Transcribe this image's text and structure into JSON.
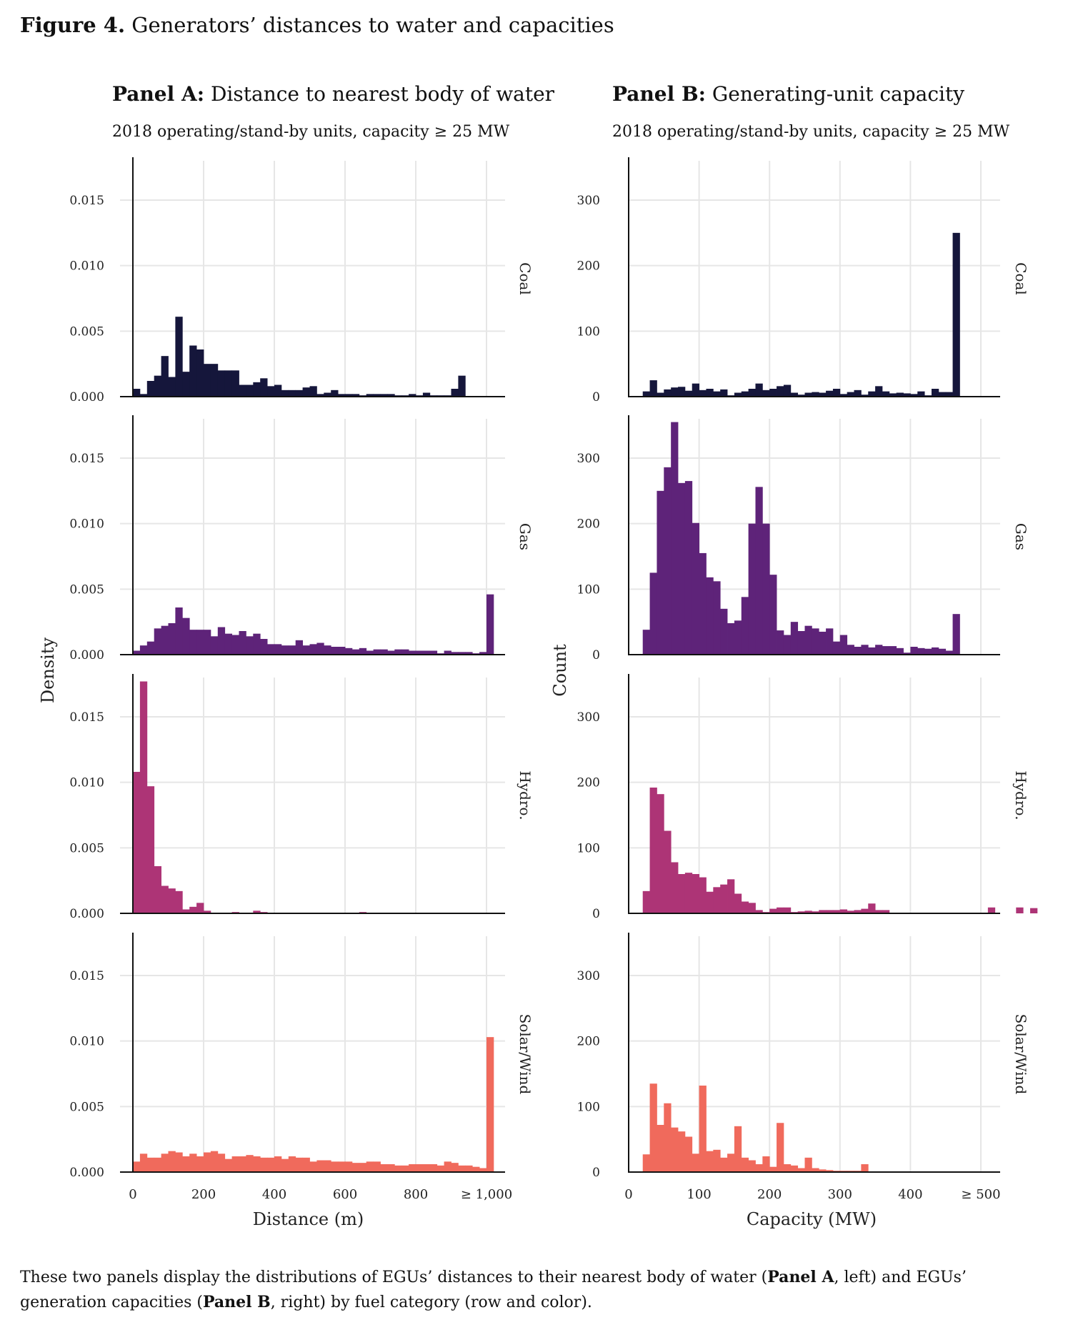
{
  "figure": {
    "label": "Figure 4.",
    "title": "Generators’ distances to water and capacities"
  },
  "panels": [
    {
      "prefix": "Panel A:",
      "title": "Distance to nearest body of water",
      "subtitle": "2018 operating/stand-by units, capacity  ≥ 25 MW"
    },
    {
      "prefix": "Panel B:",
      "title": "Generating-unit capacity",
      "subtitle": "2018 operating/stand-by units, capacity  ≥ 25 MW"
    }
  ],
  "caption": {
    "t1": "These two panels display the distributions of EGUs’ distances to their nearest body of water (",
    "b1": "Panel A",
    "t2": ", left) and EGUs’ generation capacities (",
    "b2": "Panel B",
    "t3": ", right) by fuel category (row and color)."
  },
  "colors": {
    "Coal": "#15163b",
    "Gas": "#5e2379",
    "Hydro.": "#ad3476",
    "Solar/Wind": "#f06a5c",
    "grid": "#e6e6e6"
  },
  "chart_data": [
    {
      "type": "bar",
      "panel": "A",
      "xlabel": "Distance (m)",
      "ylabel": "Density",
      "xlim": [
        0,
        1000
      ],
      "ylim": [
        0,
        0.018
      ],
      "bin_width": 20,
      "x_ticks": [
        0,
        200,
        400,
        600,
        800,
        1000
      ],
      "x_tick_labels": [
        "0",
        "200",
        "400",
        "600",
        "800",
        "≥ 1,000"
      ],
      "y_ticks": [
        0,
        0.005,
        0.01,
        0.015
      ],
      "y_tick_labels": [
        "0.000",
        "0.005",
        "0.010",
        "0.015"
      ],
      "series": [
        {
          "name": "Coal",
          "values": [
            0.0006,
            0.0002,
            0.0012,
            0.0016,
            0.0031,
            0.0015,
            0.0061,
            0.0019,
            0.0039,
            0.0036,
            0.0025,
            0.0025,
            0.002,
            0.002,
            0.002,
            0.0009,
            0.0009,
            0.0011,
            0.0014,
            0.0008,
            0.0009,
            0.0005,
            0.0005,
            0.0005,
            0.0007,
            0.0008,
            0.0002,
            0.0003,
            0.0005,
            0.0002,
            0.0002,
            0.0002,
            0.0001,
            0.0002,
            0.0002,
            0.0002,
            0.0002,
            0.0001,
            0.0001,
            0.0002,
            0.0001,
            0.0003,
            0.0001,
            0.0001,
            0.0001,
            0.0006,
            0.0016
          ]
        },
        {
          "name": "Gas",
          "values": [
            0.0003,
            0.0007,
            0.001,
            0.002,
            0.0022,
            0.0024,
            0.0036,
            0.0028,
            0.0019,
            0.0019,
            0.0019,
            0.0014,
            0.0021,
            0.0016,
            0.0015,
            0.0018,
            0.0014,
            0.0016,
            0.0012,
            0.0008,
            0.0008,
            0.0007,
            0.0007,
            0.0011,
            0.0007,
            0.0008,
            0.0009,
            0.0007,
            0.0006,
            0.0006,
            0.0005,
            0.0004,
            0.0005,
            0.0003,
            0.0004,
            0.0004,
            0.0003,
            0.0004,
            0.0004,
            0.0003,
            0.0003,
            0.0003,
            0.0003,
            0.0001,
            0.0003,
            0.0002,
            0.0002,
            0.0002,
            0.0001,
            0.0002,
            0.0046
          ]
        },
        {
          "name": "Hydro.",
          "values": [
            0.0108,
            0.0177,
            0.0097,
            0.0036,
            0.0021,
            0.0019,
            0.0017,
            0.0003,
            0.0005,
            0.0008,
            0.0002,
            0,
            0,
            0,
            0.0001,
            0,
            0,
            0.0002,
            0.0001,
            0,
            0,
            0,
            0,
            0,
            0,
            0,
            0,
            0,
            0,
            0,
            0,
            0,
            0.0001
          ]
        },
        {
          "name": "Solar/Wind",
          "values": [
            0.0008,
            0.0014,
            0.0011,
            0.0011,
            0.0014,
            0.0016,
            0.0015,
            0.0012,
            0.0014,
            0.0012,
            0.0015,
            0.0016,
            0.0014,
            0.001,
            0.0012,
            0.0012,
            0.0013,
            0.0012,
            0.0011,
            0.0011,
            0.0012,
            0.001,
            0.0012,
            0.0011,
            0.0011,
            0.0008,
            0.0009,
            0.0009,
            0.0008,
            0.0008,
            0.0008,
            0.0007,
            0.0007,
            0.0008,
            0.0008,
            0.0006,
            0.0006,
            0.0005,
            0.0005,
            0.0006,
            0.0006,
            0.0006,
            0.0006,
            0.0005,
            0.0008,
            0.0007,
            0.0005,
            0.0005,
            0.0004,
            0.0003,
            0.0103
          ]
        }
      ]
    },
    {
      "type": "bar",
      "panel": "B",
      "xlabel": "Capacity (MW)",
      "ylabel": "Count",
      "xlim": [
        0,
        500
      ],
      "ylim": [
        0,
        360
      ],
      "bin_width": 10,
      "x_ticks": [
        0,
        100,
        200,
        300,
        400,
        500
      ],
      "x_tick_labels": [
        "0",
        "100",
        "200",
        "300",
        "400",
        "≥ 500"
      ],
      "y_ticks": [
        0,
        100,
        200,
        300
      ],
      "y_tick_labels": [
        "0",
        "100",
        "200",
        "300"
      ],
      "series": [
        {
          "name": "Coal",
          "start": 20,
          "values": [
            8,
            25,
            6,
            11,
            14,
            15,
            9,
            20,
            10,
            12,
            8,
            11,
            2,
            6,
            8,
            12,
            20,
            10,
            12,
            16,
            18,
            6,
            3,
            6,
            7,
            6,
            9,
            12,
            4,
            7,
            10,
            3,
            8,
            16,
            8,
            5,
            6,
            5,
            4,
            8,
            2,
            12,
            7,
            7,
            250
          ]
        },
        {
          "name": "Gas",
          "start": 20,
          "values": [
            38,
            125,
            250,
            286,
            355,
            262,
            265,
            201,
            155,
            118,
            112,
            70,
            48,
            52,
            88,
            200,
            256,
            200,
            122,
            37,
            30,
            50,
            36,
            44,
            40,
            35,
            40,
            20,
            30,
            15,
            12,
            15,
            11,
            15,
            13,
            13,
            10,
            3,
            12,
            10,
            9,
            11,
            9,
            6,
            62
          ]
        },
        {
          "name": "Hydro.",
          "start": 20,
          "values": [
            34,
            192,
            182,
            126,
            78,
            60,
            62,
            60,
            55,
            33,
            40,
            44,
            52,
            30,
            18,
            16,
            5,
            2,
            7,
            9,
            9,
            2,
            3,
            4,
            3,
            5,
            5,
            5,
            6,
            4,
            5,
            7,
            15,
            5,
            5,
            0,
            0,
            0,
            0,
            0,
            0,
            0,
            0,
            0,
            0,
            0,
            0,
            0,
            0,
            9,
            0,
            0,
            0,
            9,
            0,
            8
          ]
        },
        {
          "name": "Solar/Wind",
          "start": 20,
          "values": [
            27,
            135,
            72,
            105,
            68,
            62,
            54,
            28,
            132,
            32,
            34,
            22,
            28,
            70,
            22,
            18,
            12,
            24,
            8,
            75,
            12,
            10,
            6,
            22,
            6,
            4,
            3,
            2,
            2,
            2,
            2,
            12
          ]
        }
      ]
    }
  ],
  "facets": [
    "Coal",
    "Gas",
    "Hydro.",
    "Solar/Wind"
  ]
}
